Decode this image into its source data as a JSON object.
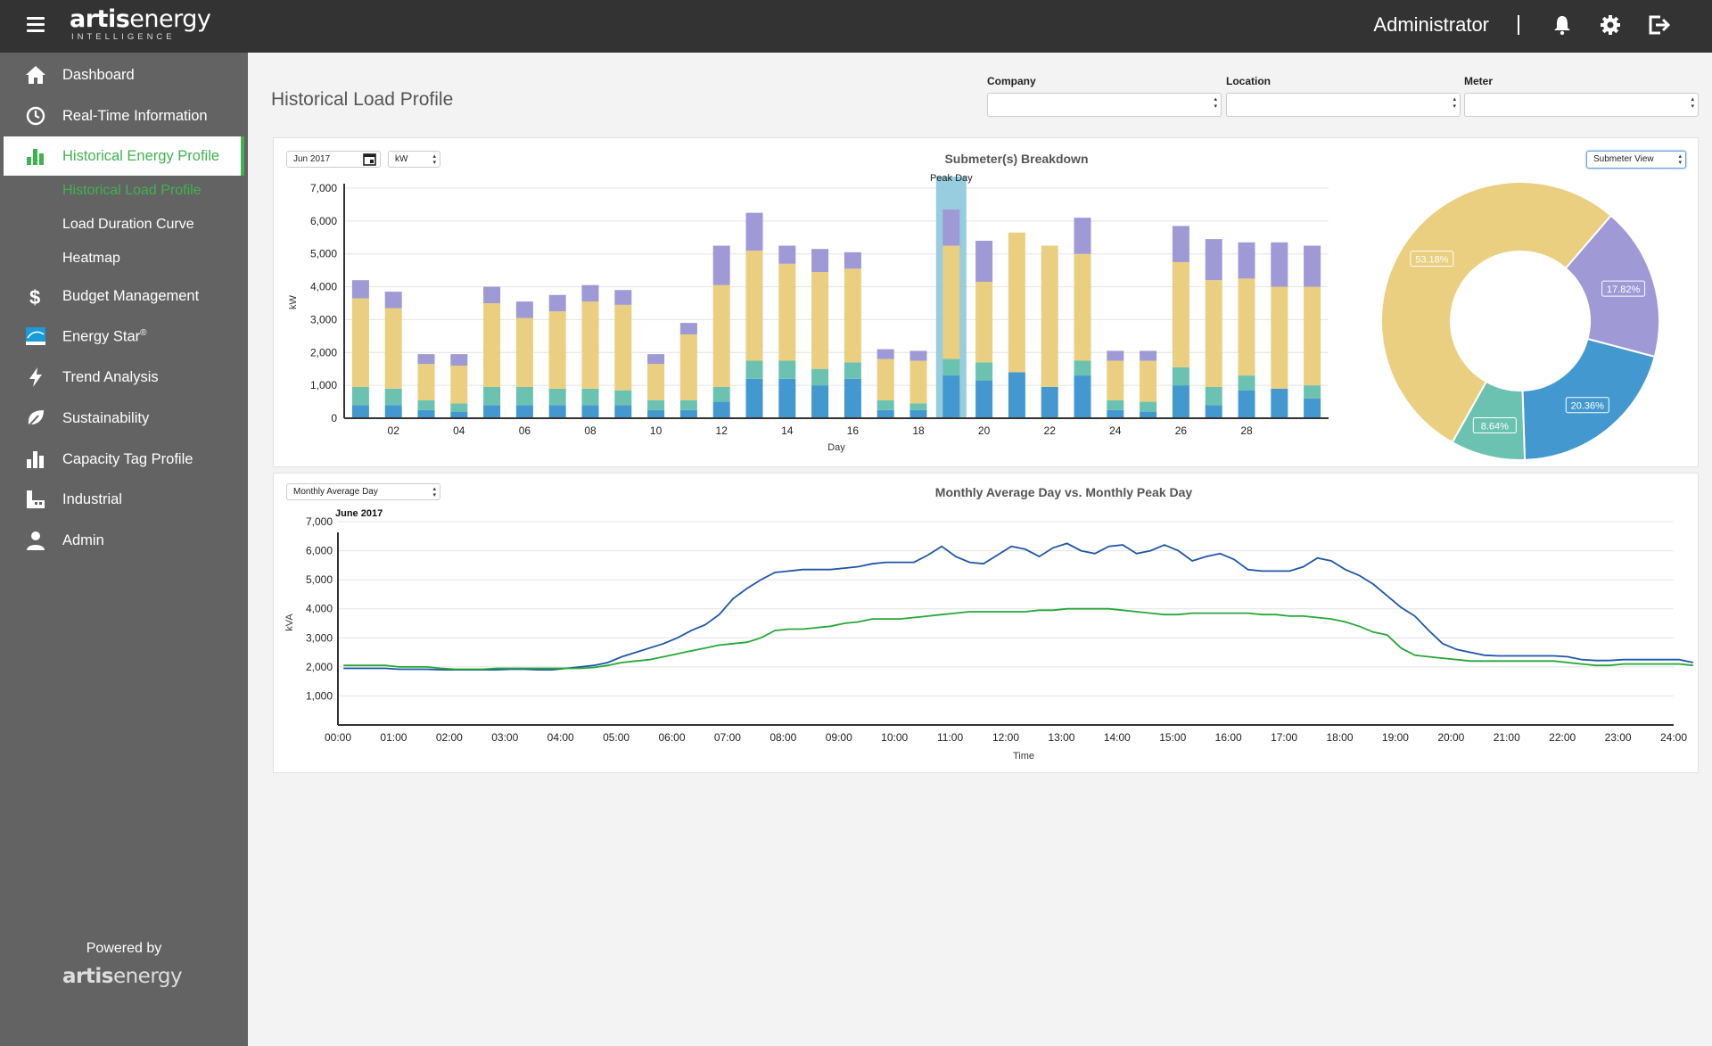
{
  "header": {
    "brand_bold": "artis",
    "brand_light": "energy",
    "brand_sub": "INTELLIGENCE",
    "user": "Administrator"
  },
  "sidebar": {
    "items": [
      {
        "label": "Dashboard",
        "icon": "home-icon"
      },
      {
        "label": "Real-Time Information",
        "icon": "clock-icon"
      },
      {
        "label": "Historical Energy Profile",
        "icon": "bar-chart-icon"
      },
      {
        "label": "Budget Management",
        "icon": "dollar-icon"
      },
      {
        "label": "Energy Star",
        "icon": "energy-star-icon"
      },
      {
        "label": "Trend Analysis",
        "icon": "lightning-icon"
      },
      {
        "label": "Sustainability",
        "icon": "leaf-icon"
      },
      {
        "label": "Capacity Tag Profile",
        "icon": "bar-chart-icon"
      },
      {
        "label": "Industrial",
        "icon": "industrial-icon"
      },
      {
        "label": "Admin",
        "icon": "user-icon"
      }
    ],
    "energy_star_sup": "®",
    "subitems": [
      "Historical Load Profile",
      "Load Duration Curve",
      "Heatmap"
    ],
    "powered_by": "Powered by",
    "footer_bold": "artis",
    "footer_light": "energy"
  },
  "page": {
    "title": "Historical Load Profile",
    "filters": [
      {
        "label": "Company",
        "value": ""
      },
      {
        "label": "Location",
        "value": ""
      },
      {
        "label": "Meter",
        "value": ""
      }
    ]
  },
  "colors": {
    "accent": "#3fb34f",
    "series": [
      "#4399cf",
      "#6cc2b0",
      "#e9cf7f",
      "#9f99d6"
    ],
    "peak_highlight": "#8cc8dc",
    "line_peak": "#1f57a6",
    "line_avg": "#27a737"
  },
  "bar_panel": {
    "date_value": "Jun 2017",
    "unit_value": "kW",
    "view_value": "Submeter View",
    "peak_label": "Peak Day"
  },
  "line_panel": {
    "select_value": "Monthly Average Day",
    "subtitle": "June 2017"
  },
  "chart_data": [
    {
      "type": "bar",
      "stacked": true,
      "title": "Submeter(s) Breakdown",
      "xlabel": "Day",
      "ylabel": "kW",
      "ylim": [
        0,
        7000
      ],
      "yticks": [
        0,
        1000,
        2000,
        3000,
        4000,
        5000,
        6000,
        7000
      ],
      "ytick_labels": [
        "0",
        "1,000",
        "2,000",
        "3,000",
        "4,000",
        "5,000",
        "6,000",
        "7,000"
      ],
      "categories": [
        1,
        2,
        3,
        4,
        5,
        6,
        7,
        8,
        9,
        10,
        11,
        12,
        13,
        14,
        15,
        16,
        17,
        18,
        19,
        20,
        21,
        22,
        23,
        24,
        25,
        26,
        27,
        28,
        29,
        30
      ],
      "xtick_labels": [
        "02",
        "04",
        "06",
        "08",
        "10",
        "12",
        "14",
        "16",
        "18",
        "20",
        "22",
        "24",
        "26",
        "28"
      ],
      "xtick_days": [
        2,
        4,
        6,
        8,
        10,
        12,
        14,
        16,
        18,
        20,
        22,
        24,
        26,
        28
      ],
      "peak_day": 19,
      "series": [
        {
          "values": [
            400,
            400,
            250,
            200,
            400,
            400,
            400,
            400,
            400,
            250,
            250,
            500,
            1200,
            1200,
            1000,
            1200,
            250,
            250,
            1300,
            1150,
            1400,
            950,
            1300,
            250,
            200,
            1000,
            400,
            850,
            900,
            600
          ]
        },
        {
          "values": [
            550,
            500,
            300,
            250,
            550,
            550,
            500,
            500,
            450,
            300,
            300,
            450,
            550,
            550,
            500,
            500,
            300,
            200,
            500,
            550,
            0,
            0,
            450,
            300,
            300,
            550,
            550,
            450,
            0,
            400
          ]
        },
        {
          "values": [
            2700,
            2450,
            1100,
            1150,
            2550,
            2100,
            2350,
            2650,
            2600,
            1100,
            2000,
            3100,
            3350,
            2950,
            2950,
            2850,
            1250,
            1300,
            3450,
            2450,
            4250,
            4300,
            3250,
            1200,
            1250,
            3200,
            3250,
            2950,
            3100,
            3000
          ]
        },
        {
          "values": [
            550,
            500,
            300,
            350,
            500,
            500,
            500,
            500,
            450,
            300,
            350,
            1200,
            1150,
            550,
            700,
            500,
            300,
            300,
            1100,
            1250,
            0,
            0,
            1100,
            300,
            300,
            1100,
            1250,
            1100,
            1350,
            1250
          ]
        }
      ]
    },
    {
      "type": "pie",
      "donut": true,
      "labels": [
        "53.18%",
        "17.82%",
        "20.36%",
        "8.64%"
      ],
      "values": [
        53.18,
        17.82,
        20.36,
        8.64
      ],
      "slice_colors": [
        "#e9cf7f",
        "#9f99d6",
        "#4399cf",
        "#6cc2b0"
      ]
    },
    {
      "type": "line",
      "title": "Monthly Average Day vs. Monthly Peak Day",
      "xlabel": "Time",
      "ylabel": "kVA",
      "ylim": [
        0,
        7000
      ],
      "yticks": [
        1000,
        2000,
        3000,
        4000,
        5000,
        6000,
        7000
      ],
      "ytick_labels": [
        "1,000",
        "2,000",
        "3,000",
        "4,000",
        "5,000",
        "6,000",
        "7,000"
      ],
      "xtick_labels": [
        "00:00",
        "01:00",
        "02:00",
        "03:00",
        "04:00",
        "05:00",
        "06:00",
        "07:00",
        "08:00",
        "09:00",
        "10:00",
        "11:00",
        "12:00",
        "13:00",
        "14:00",
        "15:00",
        "16:00",
        "17:00",
        "18:00",
        "19:00",
        "20:00",
        "21:00",
        "22:00",
        "23:00",
        "24:00"
      ],
      "x_step_hours": 0.25,
      "series": [
        {
          "values": [
            1950,
            1950,
            1950,
            1950,
            1920,
            1920,
            1920,
            1900,
            1900,
            1900,
            1900,
            1900,
            1920,
            1920,
            1900,
            1900,
            1950,
            2000,
            2050,
            2150,
            2350,
            2500,
            2650,
            2800,
            3000,
            3250,
            3450,
            3800,
            4350,
            4700,
            5000,
            5250,
            5300,
            5350,
            5350,
            5350,
            5400,
            5450,
            5550,
            5600,
            5600,
            5600,
            5850,
            6150,
            5800,
            5600,
            5550,
            5850,
            6150,
            6050,
            5800,
            6100,
            6250,
            6000,
            5900,
            6150,
            6200,
            5900,
            6000,
            6200,
            6000,
            5650,
            5800,
            5900,
            5700,
            5350,
            5300,
            5300,
            5300,
            5450,
            5750,
            5650,
            5350,
            5150,
            4850,
            4450,
            4050,
            3750,
            3250,
            2800,
            2600,
            2500,
            2400,
            2380,
            2380,
            2380,
            2380,
            2380,
            2350,
            2250,
            2220,
            2220,
            2250,
            2250,
            2250,
            2250,
            2250,
            2150
          ]
        },
        {
          "values": [
            2050,
            2050,
            2050,
            2050,
            2000,
            2000,
            2000,
            1950,
            1920,
            1920,
            1920,
            1950,
            1950,
            1950,
            1950,
            1950,
            1950,
            1950,
            1980,
            2050,
            2150,
            2200,
            2250,
            2350,
            2450,
            2550,
            2650,
            2750,
            2800,
            2850,
            3000,
            3250,
            3300,
            3300,
            3350,
            3400,
            3500,
            3550,
            3650,
            3650,
            3650,
            3700,
            3750,
            3800,
            3850,
            3900,
            3900,
            3900,
            3900,
            3900,
            3950,
            3950,
            4000,
            4000,
            4000,
            4000,
            3950,
            3900,
            3850,
            3800,
            3800,
            3850,
            3850,
            3850,
            3850,
            3850,
            3800,
            3800,
            3750,
            3750,
            3700,
            3650,
            3550,
            3400,
            3200,
            3100,
            2650,
            2400,
            2350,
            2300,
            2250,
            2200,
            2200,
            2200,
            2200,
            2200,
            2200,
            2200,
            2150,
            2100,
            2050,
            2050,
            2100,
            2100,
            2100,
            2100,
            2100,
            2050
          ]
        }
      ]
    }
  ]
}
